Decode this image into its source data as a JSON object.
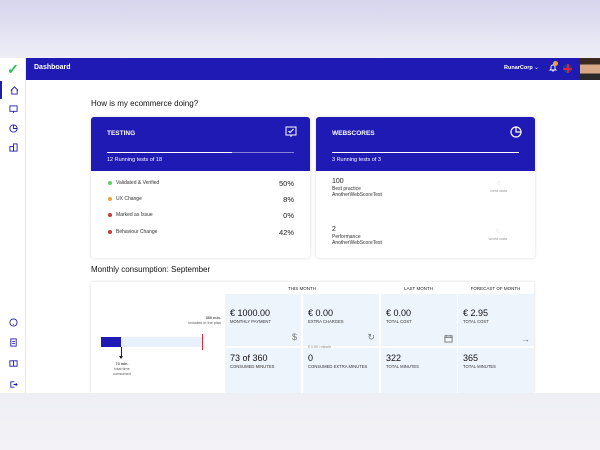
{
  "topbar": {
    "title": "Dashboard",
    "org": "RunarCorp",
    "chevron": "⌄"
  },
  "headings": {
    "overview": "How is my ecommerce doing?",
    "monthly": "Monthly consumption: September"
  },
  "testing": {
    "title": "TESTING",
    "icon": "presentation-check-icon",
    "subtitle": "12 Running tests of 18",
    "progress": 0.67,
    "rows": [
      {
        "label": "Validated & Verified",
        "pct": "50%",
        "color": "#5bd15f"
      },
      {
        "label": "UX Change",
        "pct": "8%",
        "color": "#f0a23a"
      },
      {
        "label": "Marked as Issue",
        "pct": "0%",
        "color": "#c53b3b"
      },
      {
        "label": "Behaviour Change",
        "pct": "42%",
        "color": "#c53b3b"
      }
    ]
  },
  "webscores": {
    "title": "WEBSCORES",
    "icon": "pie-chart-icon",
    "subtitle": "3 Running tests of 3",
    "progress": 1.0,
    "rows": [
      {
        "num": "100",
        "label": "Best practice",
        "test": "AnotherWebScoreTest",
        "side": "best data"
      },
      {
        "num": "2",
        "label": "Performance",
        "test": "AnotherWebScoreTest",
        "side": "worst data"
      }
    ]
  },
  "monthly": {
    "included": "360 min.",
    "included_label": "included in the plan",
    "total": "73 min.",
    "total_label1": "total time",
    "total_label2": "consumed",
    "usage_fraction": 0.2,
    "headers": {
      "this_month": "THIS MONTH",
      "last_month": "LAST MONTH",
      "forecast": "FORECAST OF MONTH"
    },
    "monthly_payment": {
      "value": "€ 1000.00",
      "label": "MONTHLY PAYMENT"
    },
    "extra_charges": {
      "value": "€ 0.00",
      "label": "EXTRA CHARGES",
      "hint": "€ 0.59 / minute"
    },
    "last_total_cost": {
      "value": "€ 0.00",
      "label": "TOTAL COST"
    },
    "forecast_total_cost": {
      "value": "€ 2.95",
      "label": "TOTAL COST"
    },
    "consumed_minutes": {
      "value": "73 of 360",
      "label": "CONSUMED MINUTES"
    },
    "consumed_extra": {
      "value": "0",
      "label": "CONSUMED EXTRA MINUTES"
    },
    "last_total_minutes": {
      "value": "322",
      "label": "TOTAL MINUTES"
    },
    "forecast_total_minutes": {
      "value": "365",
      "label": "TOTAL MINUTES"
    }
  }
}
